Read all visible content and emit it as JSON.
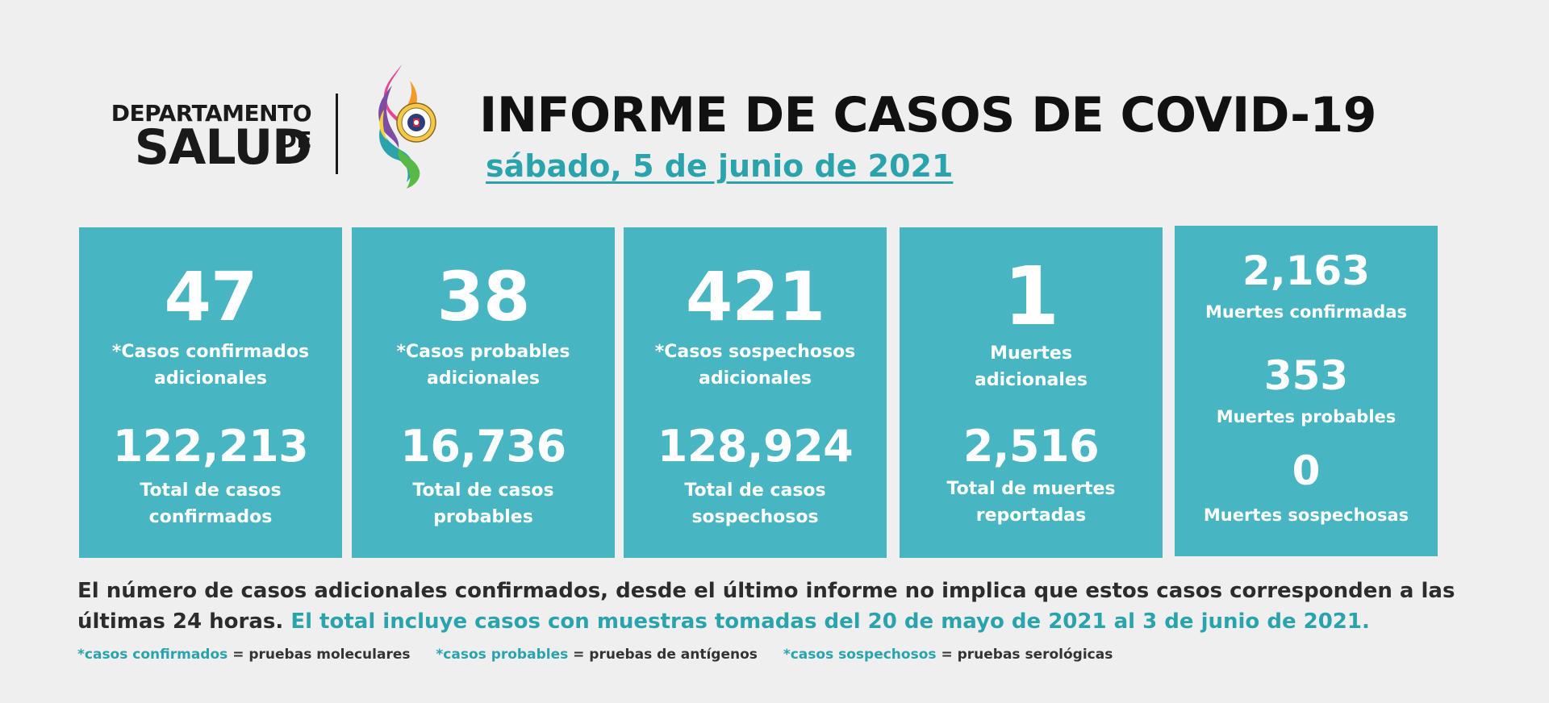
{
  "header": {
    "dept_line1": "DEPARTAMENTO DE",
    "dept_line2": "SALUD",
    "title": "INFORME DE CASOS DE COVID-19",
    "date": "sábado, 5 de junio de 2021"
  },
  "cards": [
    {
      "value": "47",
      "label_line1": "*Casos confirmados",
      "label_line2": "adicionales",
      "total": "122,213",
      "total_line1": "Total de casos",
      "total_line2": "confirmados"
    },
    {
      "value": "38",
      "label_line1": "*Casos probables",
      "label_line2": "adicionales",
      "total": "16,736",
      "total_line1": "Total de casos",
      "total_line2": "probables"
    },
    {
      "value": "421",
      "label_line1": "*Casos sospechosos",
      "label_line2": "adicionales",
      "total": "128,924",
      "total_line1": "Total de casos",
      "total_line2": "sospechosos"
    },
    {
      "value": "1",
      "label_line1": "Muertes",
      "label_line2": "adicionales",
      "total": "2,516",
      "total_line1": "Total de muertes",
      "total_line2": "reportadas"
    }
  ],
  "deaths_card": {
    "confirmed_value": "2,163",
    "confirmed_label": "Muertes confirmadas",
    "probable_value": "353",
    "probable_label": "Muertes probables",
    "suspected_value": "0",
    "suspected_label": "Muertes sospechosas"
  },
  "note": {
    "text": "El número de casos adicionales confirmados, desde el último informe no implica que estos casos corresponden a las últimas 24 horas.",
    "highlight": "El total incluye casos con muestras tomadas del 20 de mayo de 2021 al 3 de junio de 2021."
  },
  "legend": [
    {
      "key": "*casos confirmados",
      "value": "= pruebas moleculares"
    },
    {
      "key": "*casos probables",
      "value": "= pruebas de antígenos"
    },
    {
      "key": "*casos sospechosos",
      "value": "= pruebas serológicas"
    }
  ],
  "colors": {
    "card_background": "#47b5c2",
    "accent_teal": "#2aa3ad",
    "page_background": "#efefef"
  },
  "icons": {
    "logo": "puerto-rico-seal-flame-logo-icon"
  }
}
